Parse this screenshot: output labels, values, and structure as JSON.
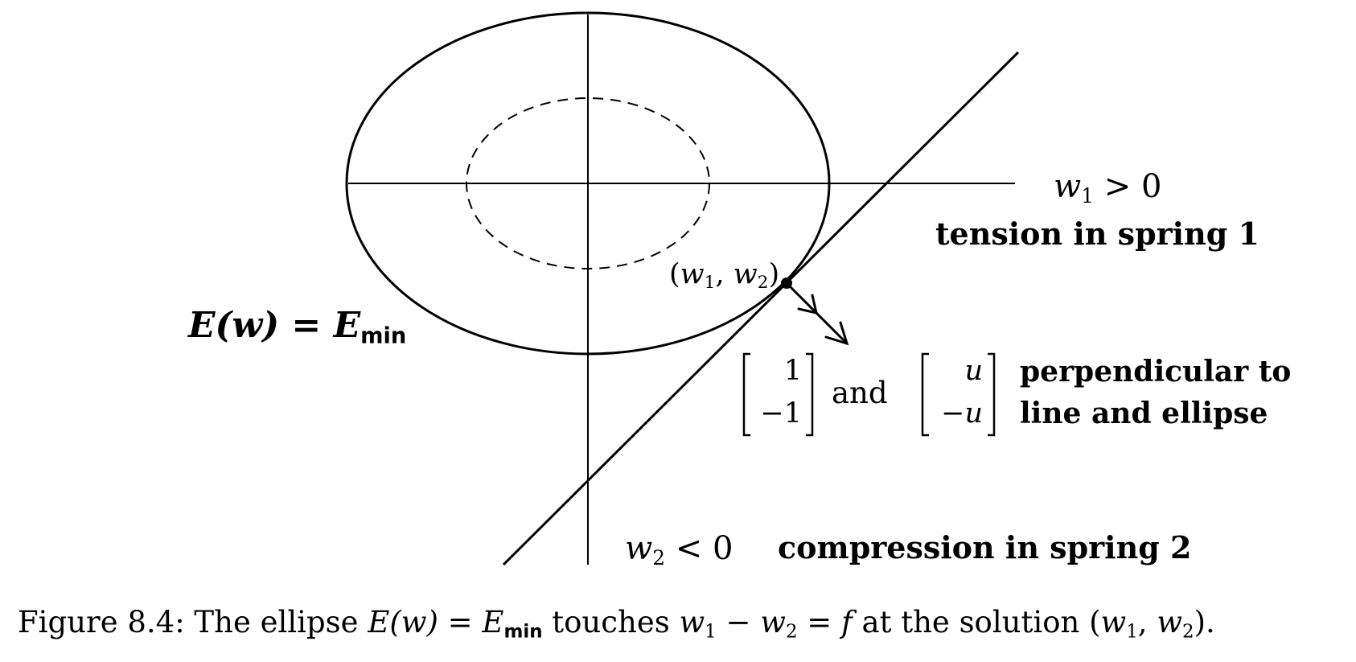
{
  "labels": {
    "w1_axis": {
      "sym": "w",
      "sub": "1",
      "rel": " > 0"
    },
    "w2_axis": {
      "sym": "w",
      "sub": "2",
      "rel": " < 0"
    },
    "tension": "tension in spring 1",
    "compression": "compression in spring 2",
    "point": {
      "open": "(",
      "a": "w",
      "asub": "1",
      "comma": ", ",
      "b": "w",
      "bsub": "2",
      "close": ")"
    },
    "ellipse_eq": {
      "lhs": "E",
      "paren": "(w)",
      "eq": " = ",
      "rhs": "E",
      "sub": "min"
    },
    "vec1": [
      "1",
      "−1"
    ],
    "and": "and",
    "vec2": [
      "u",
      "−u"
    ],
    "perp_line1": "perpendicular to",
    "perp_line2": "line and ellipse"
  },
  "caption": {
    "prefix": "Figure 8.4:  The ellipse ",
    "E1": "E",
    "w_paren": "(w)",
    "eq": " = ",
    "E2": "E",
    "min": "min",
    "mid": " touches ",
    "w1": "w",
    "w1sub": "1",
    "minus": " − ",
    "w2": "w",
    "w2sub": "2",
    "eq2": " = ",
    "f": "f",
    "end": " at the solution (",
    "pw1": "w",
    "pw1sub": "1",
    "pcomma": ", ",
    "pw2": "w",
    "pw2sub": "2",
    "close": ")."
  }
}
